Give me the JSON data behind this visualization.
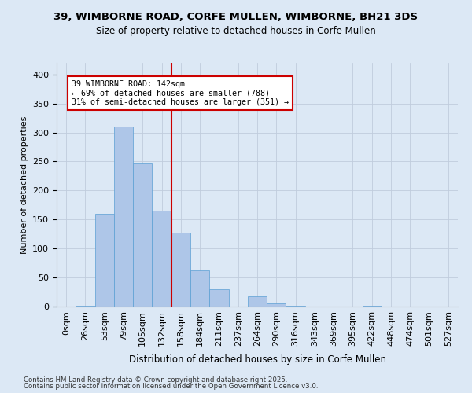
{
  "title1": "39, WIMBORNE ROAD, CORFE MULLEN, WIMBORNE, BH21 3DS",
  "title2": "Size of property relative to detached houses in Corfe Mullen",
  "xlabel": "Distribution of detached houses by size in Corfe Mullen",
  "ylabel": "Number of detached properties",
  "bin_labels": [
    "0sqm",
    "26sqm",
    "53sqm",
    "79sqm",
    "105sqm",
    "132sqm",
    "158sqm",
    "184sqm",
    "211sqm",
    "237sqm",
    "264sqm",
    "290sqm",
    "316sqm",
    "343sqm",
    "369sqm",
    "395sqm",
    "422sqm",
    "448sqm",
    "474sqm",
    "501sqm",
    "527sqm"
  ],
  "bar_values": [
    0,
    2,
    160,
    310,
    247,
    165,
    127,
    63,
    30,
    0,
    18,
    5,
    2,
    0,
    0,
    0,
    1,
    0,
    0,
    0,
    0
  ],
  "bar_color": "#aec6e8",
  "bar_edge_color": "#5a9fd4",
  "vline_x": 5,
  "vline_color": "#cc0000",
  "annotation_text": "39 WIMBORNE ROAD: 142sqm\n← 69% of detached houses are smaller (788)\n31% of semi-detached houses are larger (351) →",
  "annotation_box_color": "#ffffff",
  "annotation_edge_color": "#cc0000",
  "grid_color": "#c0ccdd",
  "background_color": "#dce8f5",
  "plot_background": "#dce8f5",
  "footnote1": "Contains HM Land Registry data © Crown copyright and database right 2025.",
  "footnote2": "Contains public sector information licensed under the Open Government Licence v3.0.",
  "ylim": [
    0,
    420
  ],
  "yticks": [
    0,
    50,
    100,
    150,
    200,
    250,
    300,
    350,
    400
  ]
}
